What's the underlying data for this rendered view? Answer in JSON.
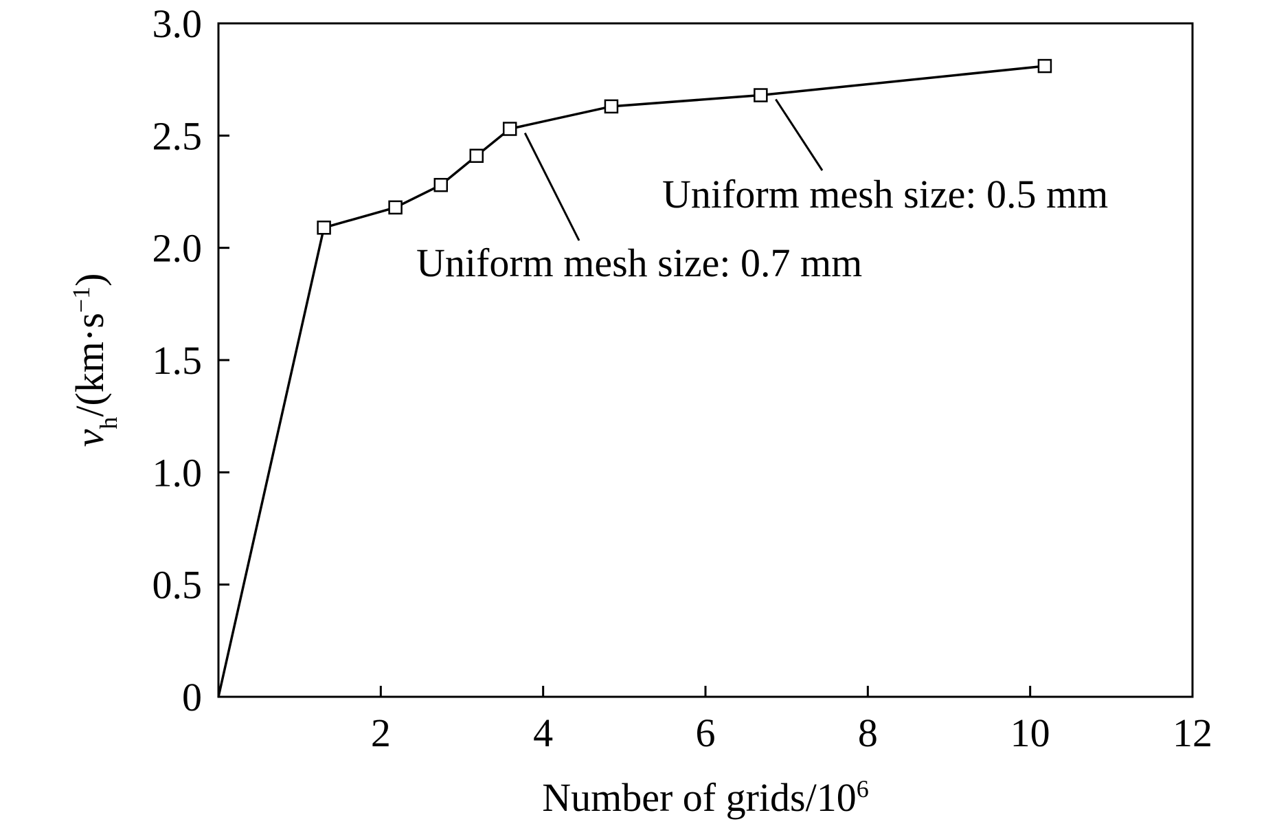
{
  "chart_data": {
    "type": "line",
    "xlabel": "Number of grids/10",
    "xlabel_sup": "6",
    "ylabel": {
      "var": "v",
      "sub": "h",
      "unit": "/(km·s",
      "unit_sup": "−1",
      "close": ")"
    },
    "xlim": [
      0,
      12
    ],
    "ylim": [
      0,
      3.0
    ],
    "x_ticks": [
      2,
      4,
      6,
      8,
      10,
      12
    ],
    "x_tick_labels": [
      "2",
      "4",
      "6",
      "8",
      "10",
      "12"
    ],
    "y_ticks": [
      0,
      0.5,
      1.0,
      1.5,
      2.0,
      2.5,
      3.0
    ],
    "y_tick_labels": [
      "0",
      "0.5",
      "1.0",
      "1.5",
      "2.0",
      "2.5",
      "3.0"
    ],
    "grid": false,
    "legend": "none",
    "series": [
      {
        "marker": "open-square",
        "color": "#000000",
        "points": [
          {
            "x": 0,
            "y": 0,
            "marker": false
          },
          {
            "x": 1.3,
            "y": 2.09
          },
          {
            "x": 2.18,
            "y": 2.18
          },
          {
            "x": 2.74,
            "y": 2.28
          },
          {
            "x": 3.18,
            "y": 2.41
          },
          {
            "x": 3.59,
            "y": 2.53
          },
          {
            "x": 4.84,
            "y": 2.63
          },
          {
            "x": 6.68,
            "y": 2.68
          },
          {
            "x": 10.18,
            "y": 2.81
          }
        ]
      }
    ],
    "annotations": [
      {
        "text": "Uniform mesh size: 0.7 mm",
        "point": {
          "x": 3.59,
          "y": 2.53
        }
      },
      {
        "text": "Uniform mesh size: 0.5 mm",
        "point": {
          "x": 6.68,
          "y": 2.68
        }
      }
    ]
  }
}
